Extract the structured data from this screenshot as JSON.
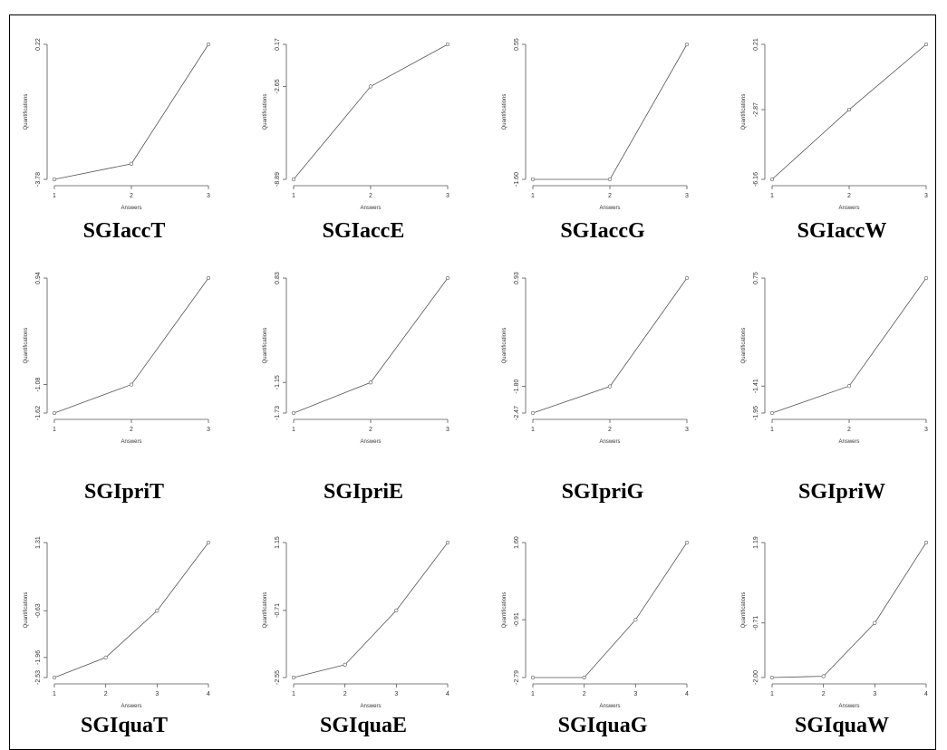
{
  "chart_data": [
    {
      "type": "line",
      "title": "SGIaccT",
      "x_label": "Answers",
      "y_label": "Quantifications",
      "x": [
        1,
        2,
        3
      ],
      "xlim": [
        1,
        3
      ],
      "xticks": [
        1,
        2,
        3
      ],
      "values": [
        -3.78,
        -3.32,
        0.22
      ],
      "ylim": [
        -3.78,
        0.22
      ],
      "yticks": [
        -3.78,
        0.22
      ],
      "color": "#555555"
    },
    {
      "type": "line",
      "title": "SGIaccE",
      "x_label": "Answers",
      "y_label": "Quantifications",
      "x": [
        1,
        2,
        3
      ],
      "xlim": [
        1,
        3
      ],
      "xticks": [
        1,
        2,
        3
      ],
      "values": [
        -8.89,
        -2.65,
        0.17
      ],
      "ylim": [
        -8.89,
        0.17
      ],
      "yticks": [
        -8.89,
        -2.65,
        0.17
      ],
      "color": "#555555"
    },
    {
      "type": "line",
      "title": "SGIaccG",
      "x_label": "Answers",
      "y_label": "Quantifications",
      "x": [
        1,
        2,
        3
      ],
      "xlim": [
        1,
        3
      ],
      "xticks": [
        1,
        2,
        3
      ],
      "values": [
        -1.6,
        -1.6,
        0.55
      ],
      "ylim": [
        -1.6,
        0.55
      ],
      "yticks": [
        {
          "value": -1.6,
          "label": "-1.60"
        },
        0.55
      ],
      "color": "#555555"
    },
    {
      "type": "line",
      "title": "SGIaccW",
      "x_label": "Answers",
      "y_label": "Quantifications",
      "x": [
        1,
        2,
        3
      ],
      "xlim": [
        1,
        3
      ],
      "xticks": [
        1,
        2,
        3
      ],
      "values": [
        -6.16,
        -2.87,
        0.21
      ],
      "ylim": [
        -6.16,
        0.21
      ],
      "yticks": [
        -6.16,
        -2.87,
        0.21
      ],
      "color": "#555555"
    },
    {
      "type": "line",
      "title": "SGIpriT",
      "x_label": "Answers",
      "y_label": "Quantifications",
      "x": [
        1,
        2,
        3
      ],
      "xlim": [
        1,
        3
      ],
      "xticks": [
        1,
        2,
        3
      ],
      "values": [
        -1.62,
        -1.08,
        0.94
      ],
      "ylim": [
        -1.62,
        0.94
      ],
      "yticks": [
        -1.62,
        -1.08,
        0.94
      ],
      "color": "#555555"
    },
    {
      "type": "line",
      "title": "SGIpriE",
      "x_label": "Answers",
      "y_label": "Quantifications",
      "x": [
        1,
        2,
        3
      ],
      "xlim": [
        1,
        3
      ],
      "xticks": [
        1,
        2,
        3
      ],
      "values": [
        -1.73,
        -1.15,
        0.83
      ],
      "ylim": [
        -1.73,
        0.83
      ],
      "yticks": [
        -1.73,
        -1.15,
        0.83
      ],
      "color": "#555555"
    },
    {
      "type": "line",
      "title": "SGIpriG",
      "x_label": "Answers",
      "y_label": "Quantifications",
      "x": [
        1,
        2,
        3
      ],
      "xlim": [
        1,
        3
      ],
      "xticks": [
        1,
        2,
        3
      ],
      "values": [
        -2.47,
        -1.8,
        0.93
      ],
      "ylim": [
        -2.47,
        0.93
      ],
      "yticks": [
        -2.47,
        {
          "value": -1.8,
          "label": "-1.80"
        },
        0.93
      ],
      "color": "#555555"
    },
    {
      "type": "line",
      "title": "SGIpriW",
      "x_label": "Answers",
      "y_label": "Quantifications",
      "x": [
        1,
        2,
        3
      ],
      "xlim": [
        1,
        3
      ],
      "xticks": [
        1,
        2,
        3
      ],
      "values": [
        -1.95,
        -1.41,
        0.75
      ],
      "ylim": [
        -1.95,
        0.75
      ],
      "yticks": [
        -1.95,
        -1.41,
        0.75
      ],
      "color": "#555555"
    },
    {
      "type": "line",
      "title": "SGIquaT",
      "x_label": "Answers",
      "y_label": "Quantifications",
      "x": [
        1,
        2,
        3,
        4
      ],
      "xlim": [
        1,
        4
      ],
      "xticks": [
        1,
        2,
        3,
        4
      ],
      "values": [
        -2.53,
        -1.96,
        -0.63,
        1.31
      ],
      "ylim": [
        -2.53,
        1.31
      ],
      "yticks": [
        -2.53,
        -1.96,
        -0.63,
        1.31
      ],
      "color": "#555555"
    },
    {
      "type": "line",
      "title": "SGIquaE",
      "x_label": "Answers",
      "y_label": "Quantifications",
      "x": [
        1,
        2,
        3,
        4
      ],
      "xlim": [
        1,
        4
      ],
      "xticks": [
        1,
        2,
        3,
        4
      ],
      "values": [
        -2.55,
        -2.2,
        -0.71,
        1.15
      ],
      "ylim": [
        -2.55,
        1.15
      ],
      "yticks": [
        -2.55,
        -0.71,
        1.15
      ],
      "color": "#555555"
    },
    {
      "type": "line",
      "title": "SGIquaG",
      "x_label": "Answers",
      "y_label": "Quantifications",
      "x": [
        1,
        2,
        3,
        4
      ],
      "xlim": [
        1,
        4
      ],
      "xticks": [
        1,
        2,
        3,
        4
      ],
      "values": [
        -2.79,
        -2.79,
        -0.91,
        1.6
      ],
      "ylim": [
        -2.79,
        1.6
      ],
      "yticks": [
        -2.79,
        -0.91,
        {
          "value": 1.6,
          "label": "1.60"
        }
      ],
      "color": "#555555"
    },
    {
      "type": "line",
      "title": "SGIquaW",
      "x_label": "Answers",
      "y_label": "Quantifications",
      "x": [
        1,
        2,
        3,
        4
      ],
      "xlim": [
        1,
        4
      ],
      "xticks": [
        1,
        2,
        3,
        4
      ],
      "values": [
        -2.0,
        -1.97,
        -0.71,
        1.19
      ],
      "ylim": [
        -2.0,
        1.19
      ],
      "yticks": [
        {
          "value": -2.0,
          "label": "-2.00"
        },
        -0.71,
        1.19
      ],
      "color": "#555555"
    }
  ]
}
